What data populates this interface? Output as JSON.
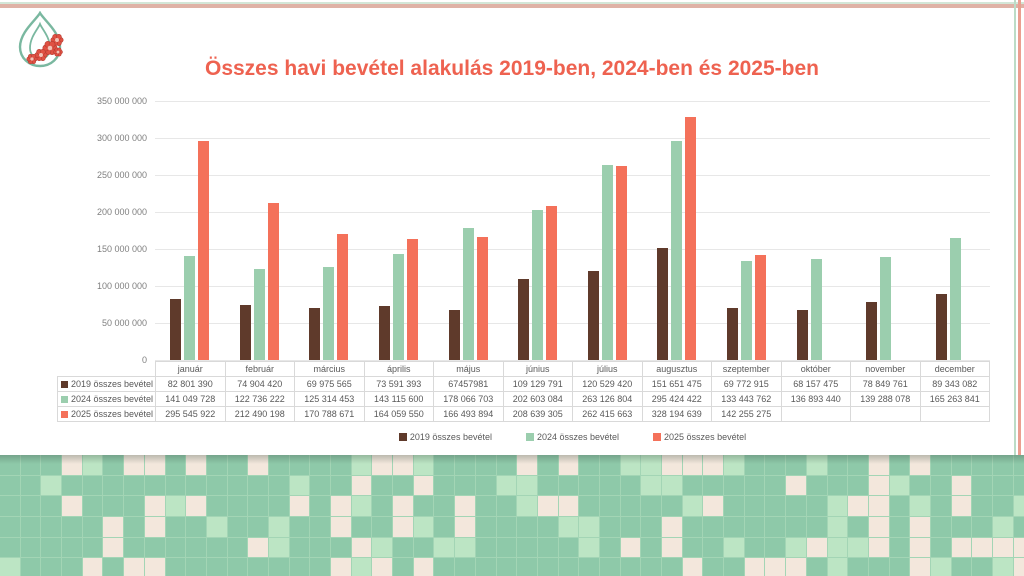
{
  "page": {
    "logo_icon": "bulb-with-flowers-logo",
    "border_colors": {
      "top_green": "#d3e6d7",
      "top_pink": "#dfb2a6",
      "right_green": "#bcdcc6",
      "right_pink": "#eb9e90"
    },
    "mosaic_palette": {
      "base_green": "#8ec9a9",
      "light_green": "#bce5c4",
      "cream": "#f3e7dc",
      "grout": "#a3d5b5"
    },
    "logo_colors": {
      "bulb_outline": "#7ab8a0",
      "flower_petal": "#e05143",
      "flower_outline": "#b53c31",
      "flower_center": "#f2c1b5"
    }
  },
  "chart_data": {
    "type": "bar",
    "title": "Összes havi bevétel alakulás 2019-ben, 2024-ben és 2025-ben",
    "title_color": "#ee6250",
    "categories": [
      "január",
      "február",
      "március",
      "április",
      "május",
      "június",
      "július",
      "augusztus",
      "szeptember",
      "október",
      "november",
      "december"
    ],
    "y_axis": {
      "min": 0,
      "max": 350000000,
      "step": 50000000,
      "tick_labels": [
        "0",
        "50 000 000",
        "100 000 000",
        "150 000 000",
        "200 000 000",
        "250 000 000",
        "300 000 000",
        "350 000 000"
      ]
    },
    "grid": true,
    "legend_position": "bottom",
    "series": [
      {
        "name": "2019 összes bevétel",
        "color": "#5f3a2b",
        "values": [
          82801390,
          74904420,
          69975565,
          73591393,
          67457981,
          109129791,
          120529420,
          151651475,
          69772915,
          68157475,
          78849761,
          89343082
        ],
        "display": [
          "82 801 390",
          "74 904 420",
          "69 975 565",
          "73 591 393",
          "67457981",
          "109 129 791",
          "120 529 420",
          "151 651 475",
          "69 772 915",
          "68 157 475",
          "78 849 761",
          "89 343 082"
        ]
      },
      {
        "name": "2024 összes bevétel",
        "color": "#9bceae",
        "values": [
          141049728,
          122736222,
          125314453,
          143115600,
          178066703,
          202603084,
          263126804,
          295424422,
          133443762,
          136893440,
          139288078,
          165263841
        ],
        "display": [
          "141 049 728",
          "122 736 222",
          "125 314 453",
          "143 115 600",
          "178 066 703",
          "202 603 084",
          "263 126 804",
          "295 424 422",
          "133 443 762",
          "136 893 440",
          "139 288 078",
          "165 263 841"
        ]
      },
      {
        "name": "2025 összes bevétel",
        "color": "#f4715a",
        "values": [
          295545922,
          212490198,
          170788671,
          164059550,
          166493894,
          208639305,
          262415663,
          328194639,
          142255275,
          null,
          null,
          null
        ],
        "display": [
          "295 545 922",
          "212 490 198",
          "170 788 671",
          "164 059 550",
          "166 493 894",
          "208 639 305",
          "262 415 663",
          "328 194 639",
          "142 255 275",
          "",
          "",
          ""
        ]
      }
    ]
  }
}
